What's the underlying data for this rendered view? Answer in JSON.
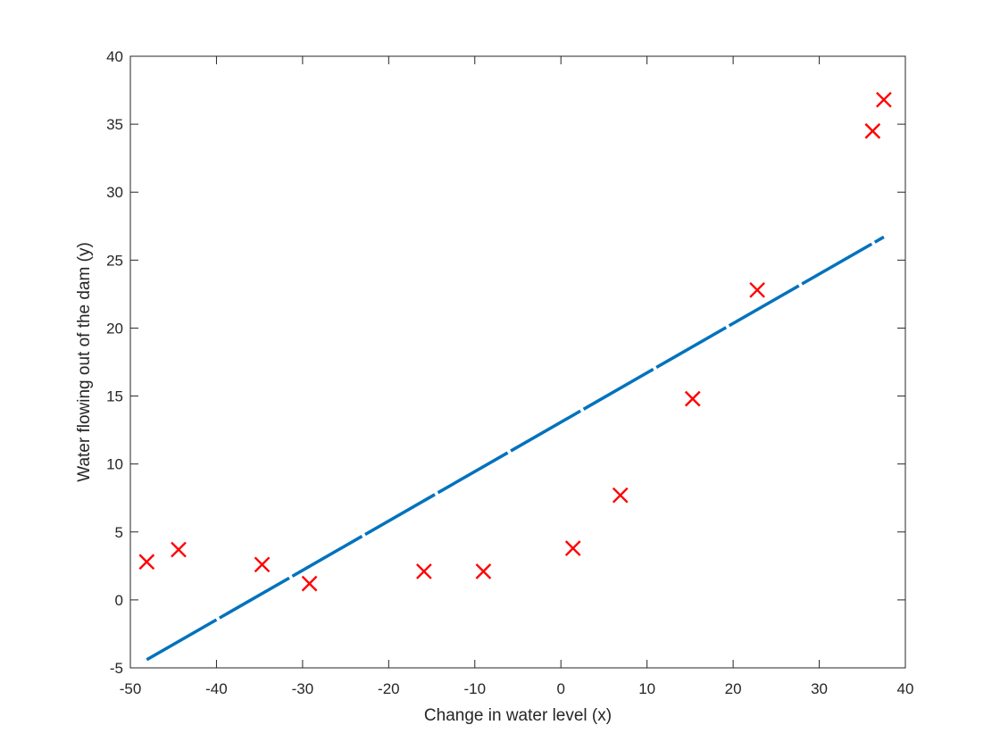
{
  "chart_data": {
    "type": "scatter",
    "xlabel": "Change in water level (x)",
    "ylabel": "Water flowing out of the dam (y)",
    "xlim": [
      -50,
      40
    ],
    "ylim": [
      -5,
      40
    ],
    "xticks": [
      -50,
      -40,
      -30,
      -20,
      -10,
      0,
      10,
      20,
      30,
      40
    ],
    "yticks": [
      -5,
      0,
      5,
      10,
      15,
      20,
      25,
      30,
      35,
      40
    ],
    "grid": false,
    "legend": "none",
    "series": [
      {
        "type": "scatter",
        "marker": "x",
        "color": "#ff0000",
        "points": [
          {
            "x": -48.1,
            "y": 2.8
          },
          {
            "x": -44.4,
            "y": 3.7
          },
          {
            "x": -34.7,
            "y": 2.6
          },
          {
            "x": -29.2,
            "y": 1.2
          },
          {
            "x": -15.9,
            "y": 2.1
          },
          {
            "x": -9.0,
            "y": 2.1
          },
          {
            "x": 1.4,
            "y": 3.8
          },
          {
            "x": 6.9,
            "y": 7.7
          },
          {
            "x": 15.3,
            "y": 14.8
          },
          {
            "x": 22.8,
            "y": 22.8
          },
          {
            "x": 36.2,
            "y": 34.5
          },
          {
            "x": 37.5,
            "y": 36.8
          }
        ]
      },
      {
        "type": "line",
        "style": "dashed",
        "color": "#0072bd",
        "points": [
          {
            "x": -48.1,
            "y": -4.4
          },
          {
            "x": 37.5,
            "y": 26.7
          }
        ]
      }
    ]
  }
}
